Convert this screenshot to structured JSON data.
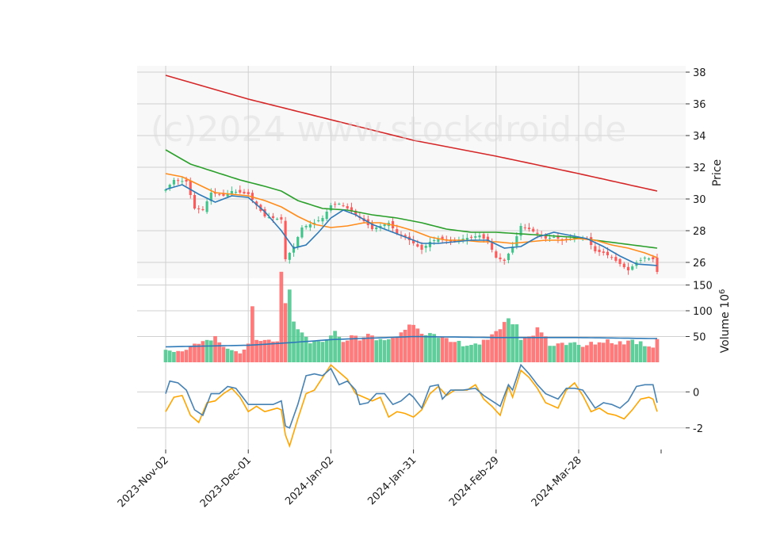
{
  "watermark": "(c)2024 www.stockdroid.de",
  "chart_data": [
    {
      "type": "candlestick",
      "panel": "price",
      "ylabel": "Price",
      "ylim": [
        25.0,
        38.4
      ],
      "yticks": [
        26,
        28,
        30,
        32,
        34,
        36,
        38
      ],
      "x_ticks": [
        {
          "label": "2023-Nov-02",
          "index": 0
        },
        {
          "label": "2023-Dec-01",
          "index": 20
        },
        {
          "label": "2024-Jan-02",
          "index": 40
        },
        {
          "label": "2024-Jan-31",
          "index": 60
        },
        {
          "label": "2024-Feb-29",
          "index": 80
        },
        {
          "label": "2024-Mar-28",
          "index": 100
        }
      ],
      "n_sessions": 120,
      "close_anchors": [
        [
          0,
          30.6
        ],
        [
          2,
          31.2
        ],
        [
          5,
          31.1
        ],
        [
          7,
          29.4
        ],
        [
          9,
          29.3
        ],
        [
          11,
          30.4
        ],
        [
          14,
          30.2
        ],
        [
          16,
          30.5
        ],
        [
          18,
          30.4
        ],
        [
          20,
          30.3
        ],
        [
          22,
          29.6
        ],
        [
          24,
          28.9
        ],
        [
          26,
          28.8
        ],
        [
          28,
          28.7
        ],
        [
          29,
          26.2
        ],
        [
          31,
          27.0
        ],
        [
          33,
          28.2
        ],
        [
          36,
          28.5
        ],
        [
          38,
          28.8
        ],
        [
          40,
          29.6
        ],
        [
          42,
          29.7
        ],
        [
          44,
          29.4
        ],
        [
          46,
          29.0
        ],
        [
          48,
          28.6
        ],
        [
          50,
          28.1
        ],
        [
          52,
          28.3
        ],
        [
          54,
          28.5
        ],
        [
          56,
          27.8
        ],
        [
          58,
          27.6
        ],
        [
          60,
          27.2
        ],
        [
          62,
          26.8
        ],
        [
          64,
          27.3
        ],
        [
          66,
          27.5
        ],
        [
          68,
          27.4
        ],
        [
          70,
          27.3
        ],
        [
          72,
          27.5
        ],
        [
          74,
          27.6
        ],
        [
          76,
          27.7
        ],
        [
          78,
          27.3
        ],
        [
          80,
          26.3
        ],
        [
          82,
          26.1
        ],
        [
          84,
          27.0
        ],
        [
          86,
          28.3
        ],
        [
          88,
          28.1
        ],
        [
          90,
          27.8
        ],
        [
          92,
          27.5
        ],
        [
          94,
          27.6
        ],
        [
          96,
          27.4
        ],
        [
          98,
          27.5
        ],
        [
          100,
          27.6
        ],
        [
          102,
          27.5
        ],
        [
          104,
          26.7
        ],
        [
          106,
          26.6
        ],
        [
          108,
          26.3
        ],
        [
          110,
          25.9
        ],
        [
          112,
          25.5
        ],
        [
          114,
          26.0
        ],
        [
          116,
          26.3
        ],
        [
          118,
          26.2
        ],
        [
          119,
          25.4
        ]
      ],
      "ma_fast_anchors": [
        [
          0,
          30.6
        ],
        [
          4,
          30.9
        ],
        [
          8,
          30.3
        ],
        [
          12,
          29.8
        ],
        [
          16,
          30.2
        ],
        [
          20,
          30.1
        ],
        [
          24,
          29.2
        ],
        [
          28,
          28.0
        ],
        [
          31,
          26.9
        ],
        [
          34,
          27.1
        ],
        [
          37,
          27.9
        ],
        [
          40,
          28.8
        ],
        [
          43,
          29.3
        ],
        [
          46,
          29.0
        ],
        [
          50,
          28.4
        ],
        [
          54,
          28.0
        ],
        [
          58,
          27.6
        ],
        [
          62,
          27.2
        ],
        [
          66,
          27.2
        ],
        [
          70,
          27.3
        ],
        [
          74,
          27.4
        ],
        [
          78,
          27.4
        ],
        [
          82,
          26.9
        ],
        [
          86,
          27.0
        ],
        [
          90,
          27.6
        ],
        [
          94,
          27.9
        ],
        [
          98,
          27.7
        ],
        [
          102,
          27.5
        ],
        [
          106,
          27.0
        ],
        [
          110,
          26.4
        ],
        [
          114,
          25.9
        ],
        [
          119,
          25.8
        ]
      ],
      "ma_mid_anchors": [
        [
          0,
          31.6
        ],
        [
          4,
          31.4
        ],
        [
          8,
          30.9
        ],
        [
          12,
          30.4
        ],
        [
          16,
          30.3
        ],
        [
          20,
          30.2
        ],
        [
          24,
          29.9
        ],
        [
          28,
          29.5
        ],
        [
          32,
          28.9
        ],
        [
          36,
          28.4
        ],
        [
          40,
          28.2
        ],
        [
          44,
          28.3
        ],
        [
          48,
          28.5
        ],
        [
          52,
          28.5
        ],
        [
          56,
          28.3
        ],
        [
          60,
          28.0
        ],
        [
          64,
          27.6
        ],
        [
          68,
          27.4
        ],
        [
          72,
          27.4
        ],
        [
          76,
          27.3
        ],
        [
          80,
          27.3
        ],
        [
          84,
          27.2
        ],
        [
          88,
          27.3
        ],
        [
          92,
          27.4
        ],
        [
          96,
          27.4
        ],
        [
          100,
          27.5
        ],
        [
          104,
          27.4
        ],
        [
          108,
          27.1
        ],
        [
          112,
          26.9
        ],
        [
          116,
          26.6
        ],
        [
          119,
          26.3
        ]
      ],
      "ma_slow_anchors": [
        [
          0,
          33.1
        ],
        [
          6,
          32.2
        ],
        [
          12,
          31.7
        ],
        [
          18,
          31.2
        ],
        [
          24,
          30.8
        ],
        [
          28,
          30.5
        ],
        [
          32,
          29.9
        ],
        [
          38,
          29.4
        ],
        [
          44,
          29.3
        ],
        [
          50,
          29.0
        ],
        [
          56,
          28.8
        ],
        [
          62,
          28.5
        ],
        [
          68,
          28.1
        ],
        [
          74,
          27.9
        ],
        [
          80,
          27.9
        ],
        [
          86,
          27.8
        ],
        [
          92,
          27.7
        ],
        [
          98,
          27.6
        ],
        [
          104,
          27.4
        ],
        [
          110,
          27.2
        ],
        [
          116,
          27.0
        ],
        [
          119,
          26.9
        ]
      ],
      "ma_long_anchors": [
        [
          0,
          37.8
        ],
        [
          20,
          36.3
        ],
        [
          40,
          35.0
        ],
        [
          60,
          33.7
        ],
        [
          80,
          32.7
        ],
        [
          100,
          31.6
        ],
        [
          119,
          30.5
        ]
      ],
      "colors": {
        "up": "#3fc48a",
        "down": "#ff5a5a",
        "ma_fast": "#2e7ab8",
        "ma_mid": "#ff8c1a",
        "ma_slow": "#2ca02c",
        "ma_long": "#d62728"
      }
    },
    {
      "type": "bar",
      "panel": "volume",
      "ylabel": "Volume  10",
      "ylabel_exponent": "6",
      "ylim": [
        0,
        160
      ],
      "yticks": [
        50,
        100,
        150
      ],
      "volume_anchors": [
        [
          0,
          28
        ],
        [
          3,
          20
        ],
        [
          6,
          30
        ],
        [
          9,
          36
        ],
        [
          12,
          45
        ],
        [
          15,
          25
        ],
        [
          18,
          20
        ],
        [
          19,
          22
        ],
        [
          20,
          32
        ],
        [
          21,
          105
        ],
        [
          22,
          40
        ],
        [
          25,
          40
        ],
        [
          27,
          45
        ],
        [
          28,
          155
        ],
        [
          29,
          100
        ],
        [
          30,
          135
        ],
        [
          31,
          70
        ],
        [
          33,
          55
        ],
        [
          35,
          40
        ],
        [
          38,
          35
        ],
        [
          40,
          60
        ],
        [
          43,
          45
        ],
        [
          46,
          48
        ],
        [
          49,
          50
        ],
        [
          52,
          42
        ],
        [
          55,
          48
        ],
        [
          58,
          60
        ],
        [
          59,
          85
        ],
        [
          61,
          72
        ],
        [
          63,
          58
        ],
        [
          66,
          45
        ],
        [
          70,
          38
        ],
        [
          74,
          35
        ],
        [
          78,
          40
        ],
        [
          80,
          55
        ],
        [
          82,
          85
        ],
        [
          84,
          80
        ],
        [
          86,
          50
        ],
        [
          88,
          45
        ],
        [
          90,
          70
        ],
        [
          93,
          35
        ],
        [
          96,
          38
        ],
        [
          99,
          35
        ],
        [
          101,
          30
        ],
        [
          104,
          38
        ],
        [
          107,
          42
        ],
        [
          110,
          38
        ],
        [
          113,
          42
        ],
        [
          116,
          35
        ],
        [
          118,
          30
        ],
        [
          119,
          48
        ]
      ],
      "ma_anchors": [
        [
          0,
          30
        ],
        [
          20,
          33
        ],
        [
          30,
          38
        ],
        [
          40,
          44
        ],
        [
          60,
          50
        ],
        [
          80,
          48
        ],
        [
          100,
          48
        ],
        [
          119,
          46
        ]
      ],
      "colors": {
        "ma": "#2e7ab8"
      }
    },
    {
      "type": "line",
      "panel": "oscillator",
      "ylim": [
        -3.2,
        1.6
      ],
      "yticks": [
        0,
        -2
      ],
      "blue_anchors": [
        [
          0,
          -0.1
        ],
        [
          1,
          0.6
        ],
        [
          3,
          0.5
        ],
        [
          5,
          0.1
        ],
        [
          7,
          -1.0
        ],
        [
          9,
          -1.3
        ],
        [
          11,
          -0.1
        ],
        [
          13,
          -0.1
        ],
        [
          15,
          0.3
        ],
        [
          17,
          0.2
        ],
        [
          19,
          -0.4
        ],
        [
          20,
          -0.7
        ],
        [
          23,
          -0.7
        ],
        [
          26,
          -0.7
        ],
        [
          28,
          -0.5
        ],
        [
          29,
          -1.9
        ],
        [
          30,
          -2.0
        ],
        [
          32,
          -0.7
        ],
        [
          34,
          0.9
        ],
        [
          36,
          1.0
        ],
        [
          38,
          0.9
        ],
        [
          40,
          1.3
        ],
        [
          42,
          0.4
        ],
        [
          44,
          0.6
        ],
        [
          46,
          0.1
        ],
        [
          47,
          -0.7
        ],
        [
          49,
          -0.6
        ],
        [
          51,
          -0.1
        ],
        [
          53,
          -0.1
        ],
        [
          55,
          -0.7
        ],
        [
          57,
          -0.5
        ],
        [
          59,
          -0.1
        ],
        [
          60,
          -0.3
        ],
        [
          62,
          -0.9
        ],
        [
          64,
          0.3
        ],
        [
          66,
          0.4
        ],
        [
          67,
          -0.4
        ],
        [
          69,
          0.1
        ],
        [
          72,
          0.1
        ],
        [
          75,
          0.2
        ],
        [
          77,
          -0.2
        ],
        [
          79,
          -0.5
        ],
        [
          81,
          -0.8
        ],
        [
          83,
          0.4
        ],
        [
          84,
          0.1
        ],
        [
          86,
          1.5
        ],
        [
          88,
          1.0
        ],
        [
          90,
          0.4
        ],
        [
          92,
          -0.1
        ],
        [
          95,
          -0.4
        ],
        [
          97,
          0.2
        ],
        [
          99,
          0.2
        ],
        [
          101,
          0.1
        ],
        [
          104,
          -0.9
        ],
        [
          106,
          -0.6
        ],
        [
          108,
          -0.7
        ],
        [
          110,
          -0.9
        ],
        [
          112,
          -0.5
        ],
        [
          114,
          0.3
        ],
        [
          116,
          0.4
        ],
        [
          118,
          0.4
        ],
        [
          119,
          -0.6
        ]
      ],
      "orange_anchors": [
        [
          0,
          -1.1
        ],
        [
          2,
          -0.3
        ],
        [
          4,
          -0.2
        ],
        [
          6,
          -1.3
        ],
        [
          8,
          -1.7
        ],
        [
          10,
          -0.6
        ],
        [
          12,
          -0.5
        ],
        [
          14,
          -0.1
        ],
        [
          16,
          0.2
        ],
        [
          18,
          -0.3
        ],
        [
          20,
          -1.1
        ],
        [
          22,
          -0.8
        ],
        [
          24,
          -1.1
        ],
        [
          27,
          -0.9
        ],
        [
          28,
          -1.0
        ],
        [
          29,
          -2.4
        ],
        [
          30,
          -3.0
        ],
        [
          32,
          -1.5
        ],
        [
          34,
          -0.1
        ],
        [
          36,
          0.1
        ],
        [
          38,
          0.8
        ],
        [
          40,
          1.5
        ],
        [
          42,
          1.1
        ],
        [
          44,
          0.7
        ],
        [
          46,
          -0.1
        ],
        [
          48,
          -0.3
        ],
        [
          50,
          -0.5
        ],
        [
          52,
          -0.3
        ],
        [
          54,
          -1.4
        ],
        [
          56,
          -1.1
        ],
        [
          58,
          -1.2
        ],
        [
          60,
          -1.4
        ],
        [
          62,
          -1.0
        ],
        [
          64,
          -0.1
        ],
        [
          66,
          0.3
        ],
        [
          68,
          -0.2
        ],
        [
          70,
          0.1
        ],
        [
          73,
          0.1
        ],
        [
          75,
          0.4
        ],
        [
          77,
          -0.4
        ],
        [
          79,
          -0.8
        ],
        [
          81,
          -1.3
        ],
        [
          83,
          0.3
        ],
        [
          84,
          -0.3
        ],
        [
          86,
          1.2
        ],
        [
          88,
          0.8
        ],
        [
          90,
          0.2
        ],
        [
          92,
          -0.6
        ],
        [
          95,
          -0.9
        ],
        [
          97,
          0.1
        ],
        [
          99,
          0.5
        ],
        [
          101,
          -0.2
        ],
        [
          103,
          -1.1
        ],
        [
          105,
          -0.9
        ],
        [
          107,
          -1.2
        ],
        [
          109,
          -1.3
        ],
        [
          111,
          -1.5
        ],
        [
          113,
          -1.0
        ],
        [
          115,
          -0.4
        ],
        [
          117,
          -0.3
        ],
        [
          118,
          -0.4
        ],
        [
          119,
          -1.1
        ]
      ],
      "colors": {
        "blue": "#4682b4",
        "orange": "#ffa500"
      }
    }
  ]
}
